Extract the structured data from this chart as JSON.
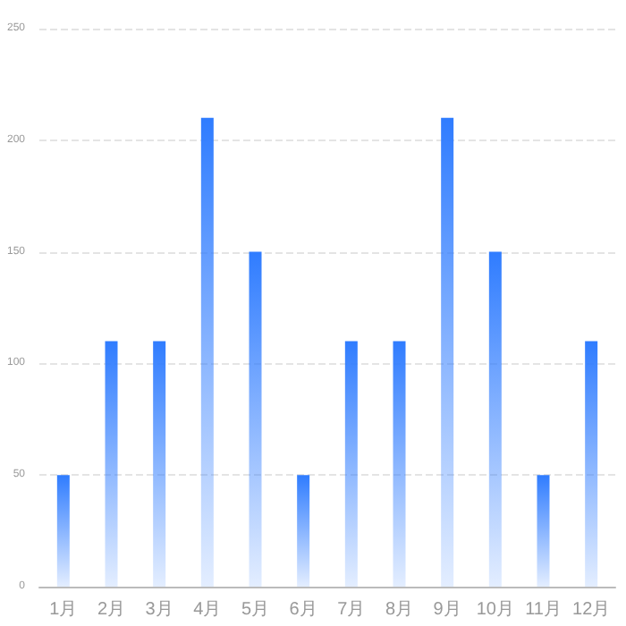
{
  "chart_data": {
    "type": "bar",
    "categories": [
      "1月",
      "2月",
      "3月",
      "4月",
      "5月",
      "6月",
      "7月",
      "8月",
      "9月",
      "10月",
      "11月",
      "12月"
    ],
    "values": [
      50,
      110,
      110,
      210,
      150,
      50,
      110,
      110,
      210,
      150,
      50,
      110
    ],
    "color": "#2f7cff",
    "ylim": [
      0,
      250
    ],
    "yticks": [
      0,
      50,
      100,
      150,
      200,
      250
    ],
    "grid": "y"
  }
}
